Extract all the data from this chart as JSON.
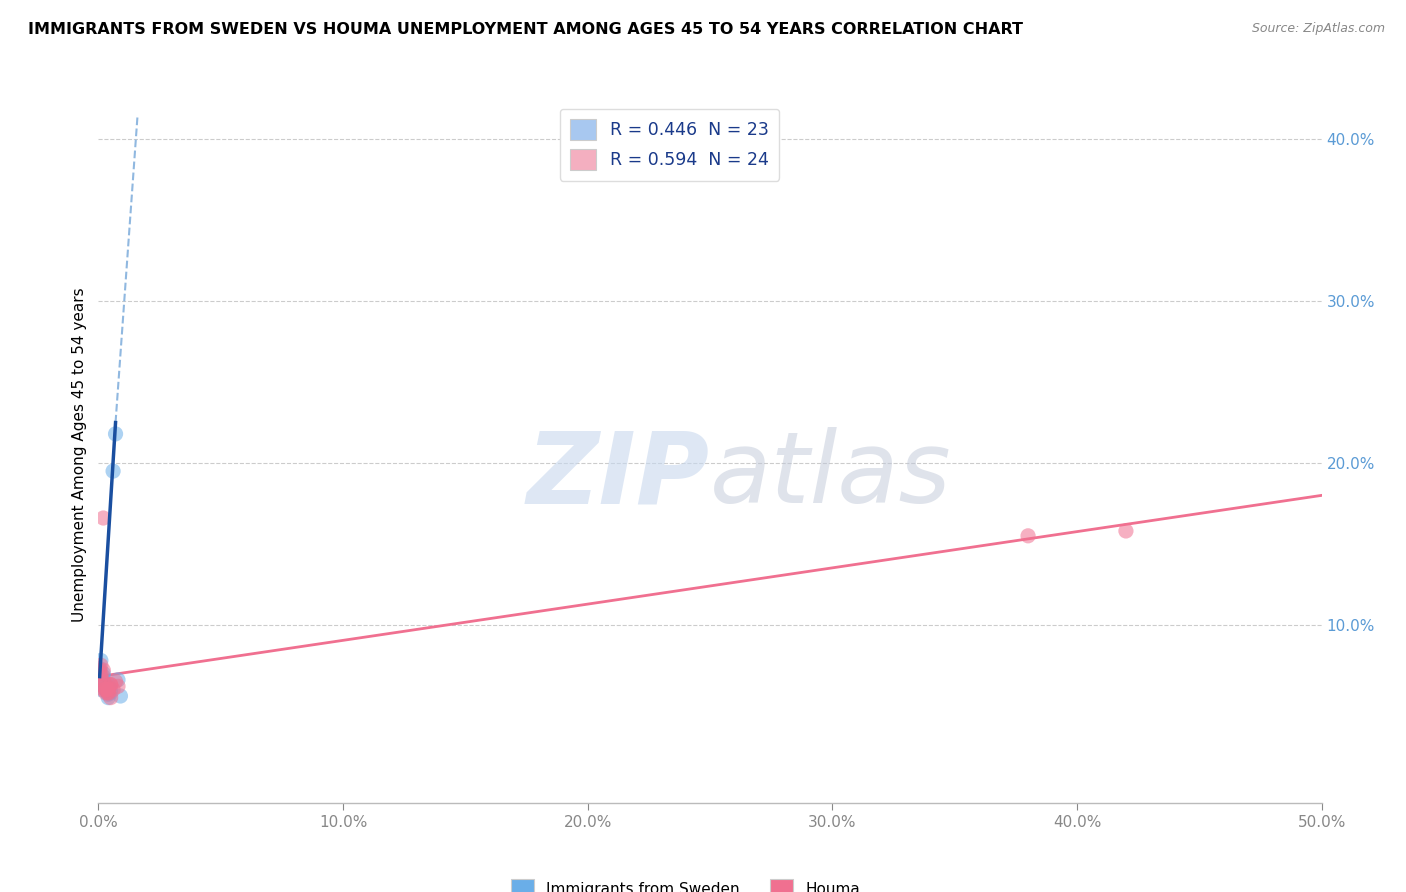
{
  "title": "IMMIGRANTS FROM SWEDEN VS HOUMA UNEMPLOYMENT AMONG AGES 45 TO 54 YEARS CORRELATION CHART",
  "source": "Source: ZipAtlas.com",
  "ylabel": "Unemployment Among Ages 45 to 54 years",
  "legend_bottom": [
    "Immigrants from Sweden",
    "Houma"
  ],
  "legend_top_labels": [
    "R = 0.446  N = 23",
    "R = 0.594  N = 24"
  ],
  "legend_top_colors": [
    "#a8c8f0",
    "#f4afc0"
  ],
  "watermark_zip": "ZIP",
  "watermark_atlas": "atlas",
  "xlim": [
    0.0,
    0.5
  ],
  "ylim": [
    -0.01,
    0.42
  ],
  "sweden_color": "#6aaee8",
  "houma_color": "#f07090",
  "sweden_line_color": "#1a4fa0",
  "houma_line_color": "#f07090",
  "dashed_color": "#90b8e0",
  "sweden_scatter": [
    [
      0.0005,
      0.073
    ],
    [
      0.001,
      0.067
    ],
    [
      0.001,
      0.06
    ],
    [
      0.001,
      0.078
    ],
    [
      0.002,
      0.063
    ],
    [
      0.002,
      0.07
    ],
    [
      0.002,
      0.068
    ],
    [
      0.002,
      0.062
    ],
    [
      0.002,
      0.066
    ],
    [
      0.003,
      0.06
    ],
    [
      0.003,
      0.063
    ],
    [
      0.003,
      0.06
    ],
    [
      0.004,
      0.058
    ],
    [
      0.004,
      0.06
    ],
    [
      0.004,
      0.063
    ],
    [
      0.004,
      0.055
    ],
    [
      0.004,
      0.057
    ],
    [
      0.005,
      0.06
    ],
    [
      0.005,
      0.058
    ],
    [
      0.006,
      0.195
    ],
    [
      0.007,
      0.218
    ],
    [
      0.008,
      0.066
    ],
    [
      0.009,
      0.056
    ]
  ],
  "houma_scatter": [
    [
      0.0005,
      0.072
    ],
    [
      0.001,
      0.068
    ],
    [
      0.001,
      0.063
    ],
    [
      0.001,
      0.075
    ],
    [
      0.001,
      0.07
    ],
    [
      0.002,
      0.065
    ],
    [
      0.002,
      0.06
    ],
    [
      0.002,
      0.072
    ],
    [
      0.002,
      0.166
    ],
    [
      0.003,
      0.063
    ],
    [
      0.003,
      0.06
    ],
    [
      0.003,
      0.058
    ],
    [
      0.003,
      0.06
    ],
    [
      0.004,
      0.058
    ],
    [
      0.004,
      0.06
    ],
    [
      0.004,
      0.058
    ],
    [
      0.005,
      0.063
    ],
    [
      0.005,
      0.055
    ],
    [
      0.005,
      0.063
    ],
    [
      0.006,
      0.06
    ],
    [
      0.007,
      0.065
    ],
    [
      0.008,
      0.062
    ],
    [
      0.38,
      0.155
    ],
    [
      0.42,
      0.158
    ]
  ],
  "sweden_solid_line": [
    [
      0.001,
      0.195
    ],
    [
      0.007,
      0.225
    ]
  ],
  "sweden_dashed_line": [
    [
      0.002,
      0.195
    ],
    [
      0.012,
      0.395
    ]
  ],
  "houma_trendline": [
    [
      0.0,
      0.068
    ],
    [
      0.5,
      0.18
    ]
  ]
}
